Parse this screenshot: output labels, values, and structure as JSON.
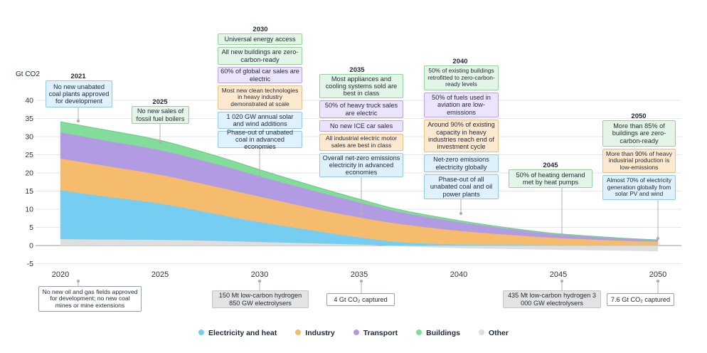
{
  "chart_data": {
    "type": "area",
    "stacked": true,
    "ylabel": "Gt CO2",
    "ylim": [
      -5,
      40
    ],
    "yticks": [
      -5,
      0,
      5,
      10,
      15,
      20,
      25,
      30,
      35,
      40
    ],
    "xlim": [
      2020,
      2050
    ],
    "xticks": [
      2020,
      2025,
      2030,
      2035,
      2040,
      2045,
      2050
    ],
    "x": [
      2020,
      2022,
      2025,
      2028,
      2030,
      2033,
      2035,
      2037,
      2040,
      2043,
      2045,
      2048,
      2050
    ],
    "series": [
      {
        "name": "Other",
        "color": "#dedede",
        "values": [
          1.8,
          1.7,
          1.6,
          1.3,
          1.0,
          0.6,
          0.3,
          -0.2,
          -0.7,
          -1.0,
          -1.2,
          -1.4,
          -1.6
        ]
      },
      {
        "name": "Electricity and heat",
        "color": "#76cdf2",
        "values": [
          13.5,
          12.0,
          10.0,
          7.2,
          5.5,
          3.3,
          2.0,
          1.0,
          0.3,
          0.2,
          0.1,
          0.1,
          0.1
        ]
      },
      {
        "name": "Industry",
        "color": "#f6bc6e",
        "values": [
          8.7,
          8.5,
          7.9,
          7.5,
          7.0,
          6.0,
          5.5,
          5.0,
          3.8,
          2.6,
          2.0,
          1.3,
          1.0
        ]
      },
      {
        "name": "Transport",
        "color": "#b39be3",
        "values": [
          7.2,
          7.0,
          6.8,
          6.2,
          5.6,
          4.8,
          4.1,
          3.3,
          2.4,
          1.5,
          1.0,
          0.6,
          0.4
        ]
      },
      {
        "name": "Buildings",
        "color": "#82dc9a",
        "values": [
          2.9,
          2.9,
          2.7,
          2.2,
          1.8,
          1.2,
          0.9,
          0.6,
          0.4,
          0.2,
          0.15,
          0.1,
          0.05
        ]
      }
    ],
    "legend": [
      "Electricity and heat",
      "Industry",
      "Transport",
      "Buildings",
      "Other"
    ]
  },
  "milestones": {
    "y2021": {
      "year": "2021",
      "items": [
        "No new unabated coal plants approved for development"
      ]
    },
    "y2025": {
      "year": "2025",
      "items": [
        "No new sales of fossil fuel boilers"
      ]
    },
    "y2030": {
      "year": "2030",
      "items": [
        "Universal energy access",
        "All new buildings are zero-carbon-ready",
        "60% of global car sales are electric",
        "Most new clean technologies in heavy industry demonstrated at scale",
        "1 020 GW annual solar and wind additions",
        "Phase-out of unabated coal in advanced economies"
      ]
    },
    "y2035": {
      "year": "2035",
      "items": [
        "Most appliances and cooling systems sold are best in class",
        "50% of heavy truck sales are electric",
        "No new ICE car sales",
        "All industrial electric motor sales are best in class",
        "Overall net-zero emissions electricity in advanced economies"
      ]
    },
    "y2040": {
      "year": "2040",
      "items": [
        "50% of existing buildings retrofitted to zero-carbon-ready levels",
        "50% of fuels used in aviation are low-emissions",
        "Around 90% of existing capacity in heavy industries reach end of investment cycle",
        "Net-zero emissions electricity globally",
        "Phase-out of all unabated coal and oil power plants"
      ]
    },
    "y2045": {
      "year": "2045",
      "items": [
        "50% of heating demand met by heat pumps"
      ]
    },
    "y2050": {
      "year": "2050",
      "items": [
        "More than 85% of buildings are zero-carbon-ready",
        "More than 90% of heavy industrial production is low-emissions",
        "Almost 70% of electricity generation globally from solar PV and wind"
      ]
    }
  },
  "bottom": {
    "b2020": "No new oil and gas fields approved for development; no new coal mines or mine extensions",
    "b2030": "150 Mt low-carbon hydrogen 850 GW electrolysers",
    "b2035": "4 Gt CO₂ captured",
    "b2045": "435 Mt low-carbon hydrogen 3 000 GW electrolysers",
    "b2050": "7.6 Gt CO₂ captured"
  }
}
